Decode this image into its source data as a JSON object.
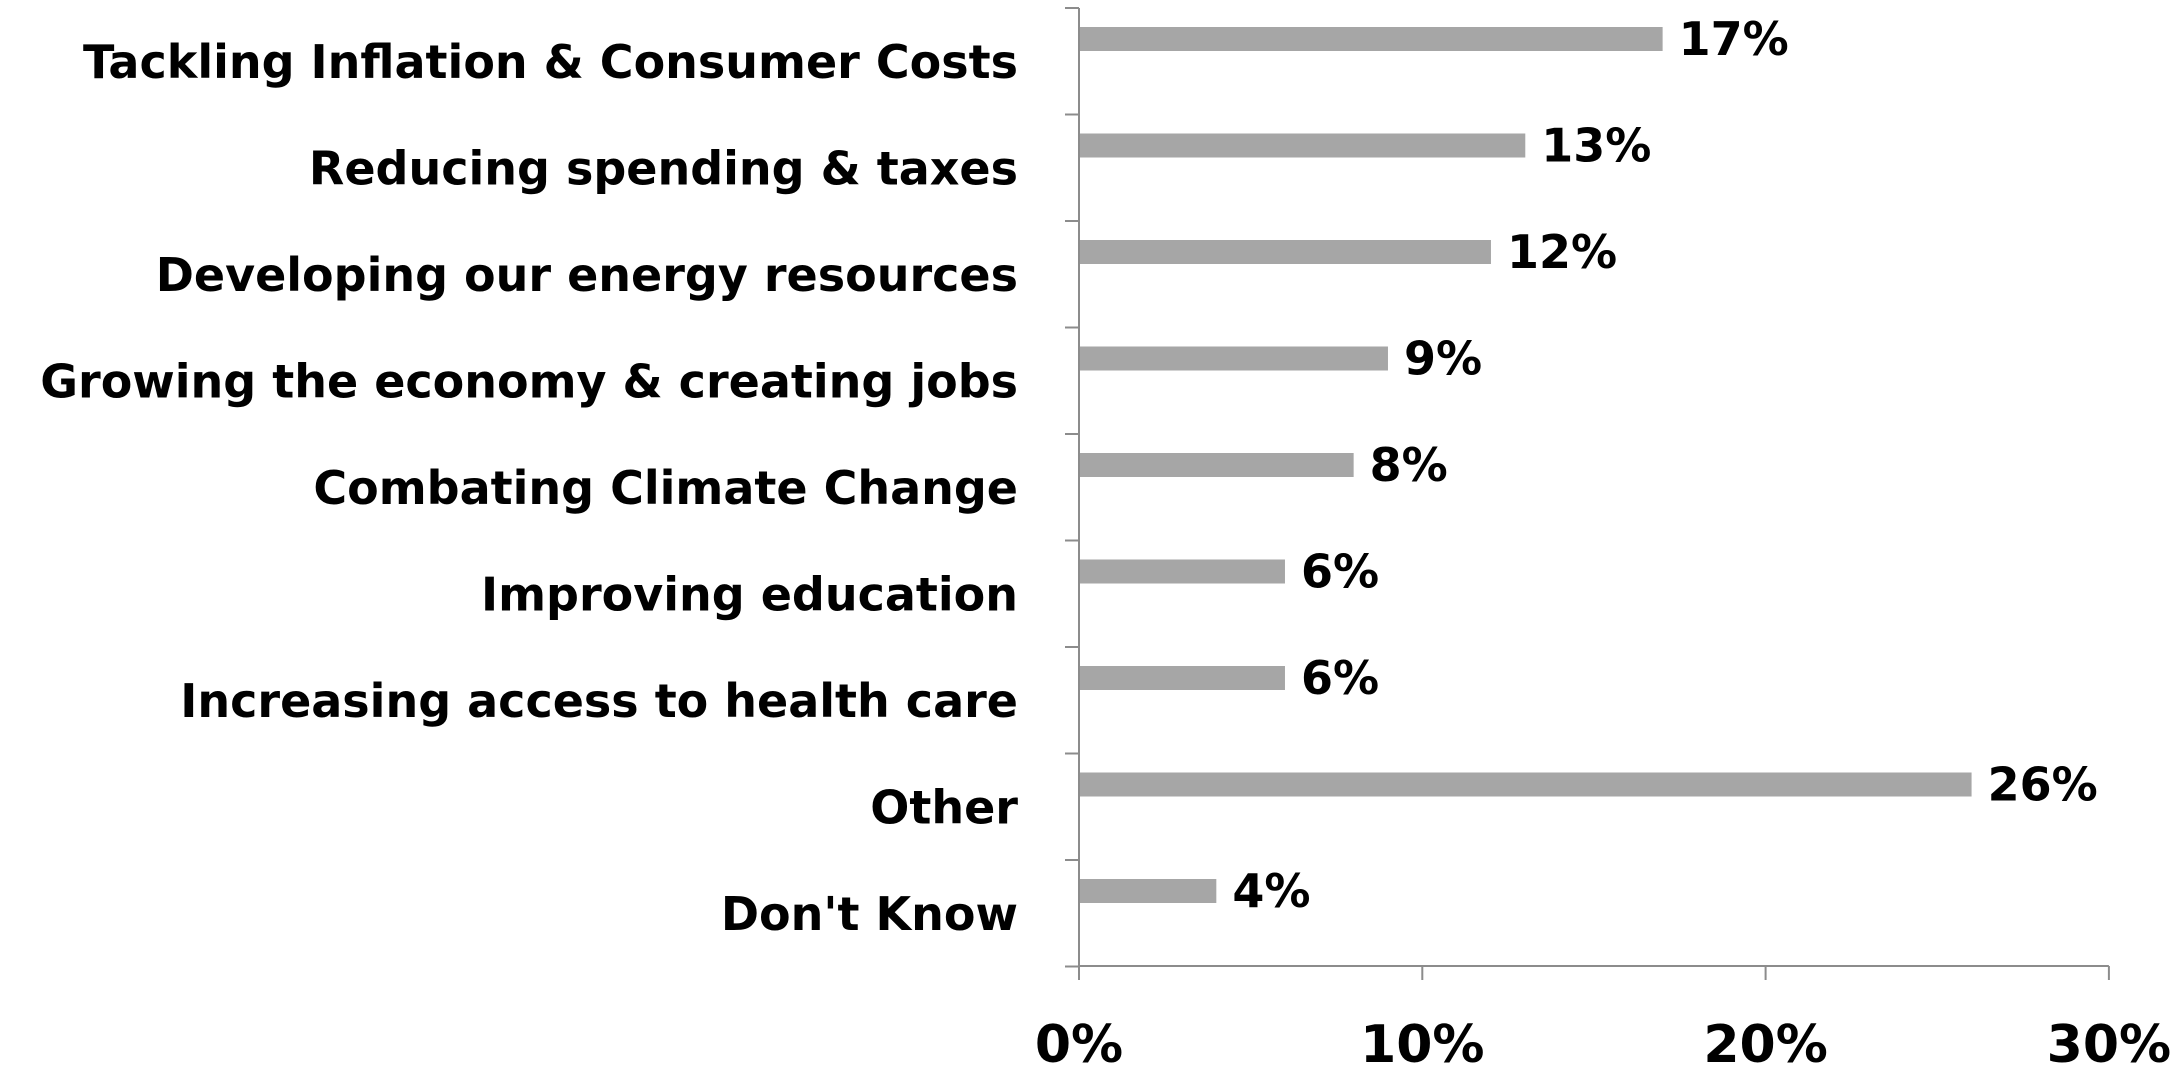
{
  "chart_data": {
    "type": "bar",
    "orientation": "horizontal",
    "categories": [
      "Tackling Inflation & Consumer Costs",
      "Reducing spending & taxes",
      "Developing our energy resources",
      "Growing the economy & creating jobs",
      "Combating Climate Change",
      "Improving education",
      "Increasing access to health care",
      "Other",
      "Don't Know"
    ],
    "values": [
      17,
      13,
      12,
      9,
      8,
      6,
      6,
      26,
      4
    ],
    "data_labels": [
      "17%",
      "13%",
      "12%",
      "9%",
      "8%",
      "6%",
      "6%",
      "26%",
      "4%"
    ],
    "xlim": [
      0,
      30
    ],
    "x_ticks": [
      0,
      10,
      20,
      30
    ],
    "x_tick_labels": [
      "0%",
      "10%",
      "20%",
      "30%"
    ],
    "grid": false,
    "legend": "none",
    "bar_color": "#a6a6a6",
    "axis_color": "#8c8c8c"
  }
}
